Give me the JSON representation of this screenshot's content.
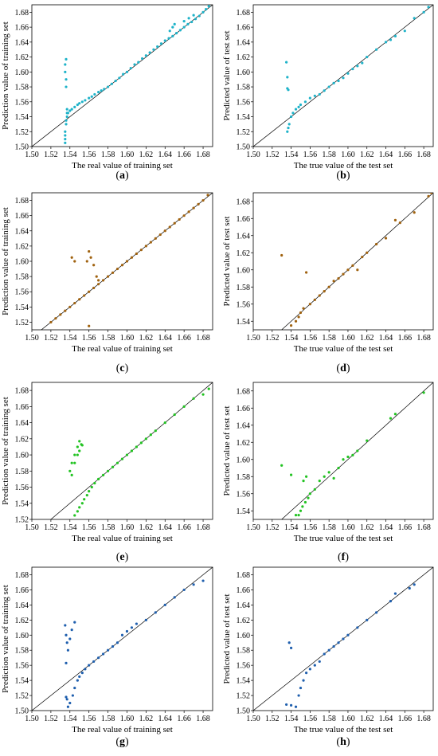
{
  "panels": [
    {
      "caption": "a",
      "xlabel": "The real value of training set",
      "ylabel": "Prediction value of training set",
      "color": "#1FB3C9",
      "xlim": [
        1.5,
        1.69
      ],
      "ylim": [
        1.5,
        1.69
      ],
      "xticks": [
        "1.50",
        "1.52",
        "1.54",
        "1.56",
        "1.58",
        "1.60",
        "1.62",
        "1.64",
        "1.66",
        "1.68"
      ],
      "yticks": [
        "1.50",
        "1.52",
        "1.54",
        "1.56",
        "1.58",
        "1.60",
        "1.62",
        "1.64",
        "1.66",
        "1.68"
      ],
      "chart_data": {
        "type": "scatter",
        "diagonal": true,
        "x": [
          1.535,
          1.535,
          1.535,
          1.535,
          1.536,
          1.536,
          1.537,
          1.537,
          1.536,
          1.536,
          1.535,
          1.535,
          1.536,
          1.537,
          1.538,
          1.54,
          1.542,
          1.545,
          1.548,
          1.55,
          1.553,
          1.556,
          1.56,
          1.563,
          1.566,
          1.57,
          1.573,
          1.576,
          1.58,
          1.584,
          1.588,
          1.592,
          1.596,
          1.6,
          1.604,
          1.608,
          1.612,
          1.616,
          1.62,
          1.624,
          1.628,
          1.632,
          1.636,
          1.64,
          1.644,
          1.648,
          1.652,
          1.656,
          1.66,
          1.664,
          1.668,
          1.672,
          1.676,
          1.68,
          1.683,
          1.686,
          1.645,
          1.648,
          1.65,
          1.66,
          1.665,
          1.67
        ],
        "y": [
          1.505,
          1.51,
          1.515,
          1.52,
          1.53,
          1.535,
          1.54,
          1.545,
          1.58,
          1.59,
          1.6,
          1.61,
          1.617,
          1.55,
          1.545,
          1.548,
          1.55,
          1.553,
          1.556,
          1.558,
          1.56,
          1.562,
          1.565,
          1.567,
          1.57,
          1.573,
          1.575,
          1.577,
          1.58,
          1.584,
          1.588,
          1.592,
          1.597,
          1.6,
          1.605,
          1.61,
          1.613,
          1.618,
          1.622,
          1.626,
          1.63,
          1.634,
          1.638,
          1.642,
          1.645,
          1.648,
          1.652,
          1.656,
          1.66,
          1.664,
          1.667,
          1.671,
          1.675,
          1.68,
          1.684,
          1.688,
          1.655,
          1.66,
          1.664,
          1.668,
          1.672,
          1.676
        ]
      }
    },
    {
      "caption": "b",
      "xlabel": "The true value of the test set",
      "ylabel": "Predicted value of test set",
      "color": "#1FB3C9",
      "xlim": [
        1.5,
        1.69
      ],
      "ylim": [
        1.5,
        1.69
      ],
      "xticks": [
        "1.50",
        "1.52",
        "1.54",
        "1.56",
        "1.58",
        "1.60",
        "1.62",
        "1.64",
        "1.66",
        "1.68"
      ],
      "yticks": [
        "1.50",
        "1.52",
        "1.54",
        "1.56",
        "1.58",
        "1.60",
        "1.62",
        "1.64",
        "1.66",
        "1.68"
      ],
      "chart_data": {
        "type": "scatter",
        "diagonal": true,
        "x": [
          1.535,
          1.536,
          1.536,
          1.537,
          1.537,
          1.536,
          1.538,
          1.54,
          1.542,
          1.545,
          1.548,
          1.55,
          1.555,
          1.56,
          1.565,
          1.57,
          1.575,
          1.58,
          1.585,
          1.59,
          1.595,
          1.6,
          1.605,
          1.61,
          1.615,
          1.62,
          1.63,
          1.64,
          1.645,
          1.65,
          1.66,
          1.67,
          1.68,
          1.685
        ],
        "y": [
          1.613,
          1.593,
          1.578,
          1.576,
          1.525,
          1.52,
          1.53,
          1.54,
          1.545,
          1.55,
          1.553,
          1.556,
          1.56,
          1.565,
          1.568,
          1.57,
          1.575,
          1.58,
          1.585,
          1.588,
          1.592,
          1.598,
          1.604,
          1.608,
          1.612,
          1.62,
          1.63,
          1.64,
          1.643,
          1.648,
          1.655,
          1.672,
          1.68,
          1.687
        ]
      }
    },
    {
      "caption": "c",
      "xlabel": "The real value of training set",
      "ylabel": "Prediction value of training set",
      "color": "#A0620F",
      "xlim": [
        1.5,
        1.69
      ],
      "ylim": [
        1.51,
        1.69
      ],
      "xticks": [
        "1.50",
        "1.52",
        "1.54",
        "1.56",
        "1.58",
        "1.60",
        "1.62",
        "1.64",
        "1.66",
        "1.68"
      ],
      "yticks": [
        "1.52",
        "1.54",
        "1.56",
        "1.58",
        "1.60",
        "1.62",
        "1.64",
        "1.66",
        "1.68"
      ],
      "chart_data": {
        "type": "scatter",
        "diagonal": true,
        "x": [
          1.52,
          1.525,
          1.53,
          1.535,
          1.54,
          1.545,
          1.55,
          1.555,
          1.56,
          1.565,
          1.57,
          1.575,
          1.58,
          1.585,
          1.59,
          1.595,
          1.6,
          1.605,
          1.61,
          1.615,
          1.62,
          1.625,
          1.63,
          1.635,
          1.64,
          1.645,
          1.65,
          1.655,
          1.66,
          1.665,
          1.67,
          1.675,
          1.68,
          1.685,
          1.542,
          1.545,
          1.558,
          1.56,
          1.562,
          1.565,
          1.568,
          1.57,
          1.56
        ],
        "y": [
          1.52,
          1.525,
          1.53,
          1.535,
          1.54,
          1.545,
          1.55,
          1.555,
          1.56,
          1.565,
          1.57,
          1.575,
          1.58,
          1.585,
          1.59,
          1.595,
          1.6,
          1.605,
          1.61,
          1.615,
          1.62,
          1.625,
          1.63,
          1.635,
          1.64,
          1.645,
          1.65,
          1.655,
          1.66,
          1.665,
          1.67,
          1.675,
          1.68,
          1.687,
          1.605,
          1.6,
          1.6,
          1.613,
          1.605,
          1.595,
          1.58,
          1.575,
          1.515
        ]
      }
    },
    {
      "caption": "d",
      "xlabel": "The true value of the test set",
      "ylabel": "Predicted value of test set",
      "color": "#A0620F",
      "xlim": [
        1.5,
        1.69
      ],
      "ylim": [
        1.53,
        1.69
      ],
      "xticks": [
        "1.50",
        "1.52",
        "1.54",
        "1.56",
        "1.58",
        "1.60",
        "1.62",
        "1.64",
        "1.66",
        "1.68"
      ],
      "yticks": [
        "1.54",
        "1.56",
        "1.58",
        "1.60",
        "1.62",
        "1.64",
        "1.66",
        "1.68"
      ],
      "chart_data": {
        "type": "scatter",
        "diagonal": true,
        "x": [
          1.53,
          1.54,
          1.545,
          1.548,
          1.55,
          1.553,
          1.556,
          1.56,
          1.565,
          1.57,
          1.575,
          1.58,
          1.585,
          1.59,
          1.595,
          1.6,
          1.605,
          1.61,
          1.615,
          1.62,
          1.63,
          1.64,
          1.65,
          1.655,
          1.67,
          1.685,
          1.688
        ],
        "y": [
          1.617,
          1.535,
          1.54,
          1.545,
          1.55,
          1.555,
          1.597,
          1.56,
          1.565,
          1.57,
          1.575,
          1.58,
          1.587,
          1.59,
          1.595,
          1.6,
          1.605,
          1.6,
          1.615,
          1.62,
          1.63,
          1.637,
          1.658,
          1.655,
          1.667,
          1.686,
          1.69
        ]
      }
    },
    {
      "caption": "e",
      "xlabel": "The real value of training set",
      "ylabel": "Prediction value of training set",
      "color": "#22C322",
      "xlim": [
        1.5,
        1.69
      ],
      "ylim": [
        1.52,
        1.69
      ],
      "xticks": [
        "1.50",
        "1.52",
        "1.54",
        "1.56",
        "1.58",
        "1.60",
        "1.62",
        "1.64",
        "1.66",
        "1.68"
      ],
      "yticks": [
        "1.52",
        "1.54",
        "1.56",
        "1.58",
        "1.60",
        "1.62",
        "1.64",
        "1.66",
        "1.68"
      ],
      "chart_data": {
        "type": "scatter",
        "diagonal": true,
        "x": [
          1.54,
          1.542,
          1.545,
          1.548,
          1.55,
          1.552,
          1.545,
          1.548,
          1.55,
          1.553,
          1.555,
          1.558,
          1.56,
          1.563,
          1.566,
          1.57,
          1.575,
          1.58,
          1.585,
          1.59,
          1.595,
          1.6,
          1.605,
          1.61,
          1.615,
          1.62,
          1.625,
          1.63,
          1.64,
          1.65,
          1.66,
          1.67,
          1.68,
          1.686,
          1.542,
          1.545,
          1.548,
          1.55,
          1.553
        ],
        "y": [
          1.58,
          1.59,
          1.6,
          1.61,
          1.617,
          1.613,
          1.525,
          1.53,
          1.535,
          1.54,
          1.545,
          1.55,
          1.555,
          1.56,
          1.565,
          1.57,
          1.575,
          1.58,
          1.585,
          1.59,
          1.595,
          1.6,
          1.605,
          1.61,
          1.615,
          1.62,
          1.625,
          1.63,
          1.64,
          1.65,
          1.66,
          1.67,
          1.675,
          1.682,
          1.575,
          1.59,
          1.6,
          1.605,
          1.612
        ]
      }
    },
    {
      "caption": "f",
      "xlabel": "The true value of the test set",
      "ylabel": "Predicted value of test set",
      "color": "#22C322",
      "xlim": [
        1.5,
        1.69
      ],
      "ylim": [
        1.53,
        1.69
      ],
      "xticks": [
        "1.50",
        "1.52",
        "1.54",
        "1.56",
        "1.58",
        "1.60",
        "1.62",
        "1.64",
        "1.66",
        "1.68"
      ],
      "yticks": [
        "1.54",
        "1.56",
        "1.58",
        "1.60",
        "1.62",
        "1.64",
        "1.66",
        "1.68"
      ],
      "chart_data": {
        "type": "scatter",
        "diagonal": true,
        "x": [
          1.53,
          1.54,
          1.545,
          1.548,
          1.55,
          1.552,
          1.555,
          1.558,
          1.56,
          1.565,
          1.57,
          1.575,
          1.58,
          1.585,
          1.59,
          1.595,
          1.6,
          1.605,
          1.61,
          1.62,
          1.645,
          1.65,
          1.68,
          1.553,
          1.556
        ],
        "y": [
          1.593,
          1.582,
          1.535,
          1.535,
          1.54,
          1.545,
          1.55,
          1.555,
          1.56,
          1.565,
          1.575,
          1.58,
          1.585,
          1.578,
          1.59,
          1.6,
          1.603,
          1.605,
          1.61,
          1.622,
          1.648,
          1.653,
          1.678,
          1.575,
          1.58
        ]
      }
    },
    {
      "caption": "g",
      "xlabel": "The real value of training set",
      "ylabel": "Prediction value of training set",
      "color": "#1F5FAE",
      "xlim": [
        1.5,
        1.69
      ],
      "ylim": [
        1.5,
        1.69
      ],
      "xticks": [
        "1.50",
        "1.52",
        "1.54",
        "1.56",
        "1.58",
        "1.60",
        "1.62",
        "1.64",
        "1.66",
        "1.68"
      ],
      "yticks": [
        "1.50",
        "1.52",
        "1.54",
        "1.56",
        "1.58",
        "1.60",
        "1.62",
        "1.64",
        "1.66",
        "1.68"
      ],
      "chart_data": {
        "type": "scatter",
        "diagonal": true,
        "x": [
          1.535,
          1.536,
          1.537,
          1.538,
          1.54,
          1.542,
          1.545,
          1.536,
          1.537,
          1.538,
          1.54,
          1.543,
          1.545,
          1.548,
          1.55,
          1.553,
          1.556,
          1.56,
          1.565,
          1.57,
          1.575,
          1.58,
          1.585,
          1.59,
          1.595,
          1.6,
          1.605,
          1.61,
          1.62,
          1.63,
          1.64,
          1.65,
          1.66,
          1.67,
          1.68,
          1.536
        ],
        "y": [
          1.613,
          1.6,
          1.59,
          1.58,
          1.595,
          1.607,
          1.617,
          1.518,
          1.515,
          1.505,
          1.51,
          1.52,
          1.53,
          1.54,
          1.545,
          1.55,
          1.555,
          1.56,
          1.565,
          1.57,
          1.575,
          1.58,
          1.585,
          1.59,
          1.6,
          1.605,
          1.61,
          1.615,
          1.62,
          1.63,
          1.64,
          1.65,
          1.66,
          1.667,
          1.672,
          1.563
        ]
      }
    },
    {
      "caption": "h",
      "xlabel": "The true value of the test set",
      "ylabel": "Predicted value of test set",
      "color": "#1F5FAE",
      "xlim": [
        1.5,
        1.69
      ],
      "ylim": [
        1.5,
        1.69
      ],
      "xticks": [
        "1.50",
        "1.52",
        "1.54",
        "1.56",
        "1.58",
        "1.60",
        "1.62",
        "1.64",
        "1.66",
        "1.68"
      ],
      "yticks": [
        "1.50",
        "1.52",
        "1.54",
        "1.56",
        "1.58",
        "1.60",
        "1.62",
        "1.64",
        "1.66",
        "1.68"
      ],
      "chart_data": {
        "type": "scatter",
        "diagonal": true,
        "x": [
          1.535,
          1.54,
          1.545,
          1.548,
          1.55,
          1.553,
          1.556,
          1.56,
          1.565,
          1.57,
          1.575,
          1.58,
          1.585,
          1.59,
          1.595,
          1.6,
          1.61,
          1.62,
          1.63,
          1.645,
          1.65,
          1.665,
          1.67,
          1.54,
          1.538
        ],
        "y": [
          1.508,
          1.583,
          1.505,
          1.52,
          1.53,
          1.54,
          1.55,
          1.555,
          1.56,
          1.565,
          1.575,
          1.58,
          1.585,
          1.59,
          1.595,
          1.6,
          1.61,
          1.62,
          1.63,
          1.645,
          1.655,
          1.662,
          1.667,
          1.507,
          1.59
        ]
      }
    }
  ]
}
